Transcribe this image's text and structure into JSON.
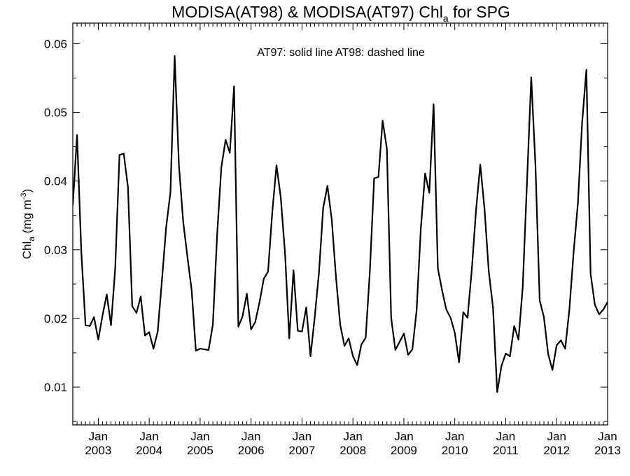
{
  "chart_data": {
    "type": "line",
    "title_parts": {
      "main": "MODISA(AT98) & MODISA(AT97)  Chl",
      "sub": "a",
      "tail": " for SPG"
    },
    "ylabel_parts": {
      "main": "Chl",
      "sub": "a",
      "units_open": " (mg m",
      "sup": "-3",
      "units_close": ")"
    },
    "annotation": "AT97: solid line   AT98: dashed line",
    "ylim": [
      0.0045,
      0.063
    ],
    "xlim": [
      2002.5,
      2013.0
    ],
    "y_ticks": [
      0.01,
      0.02,
      0.03,
      0.04,
      0.05,
      0.06
    ],
    "y_tick_labels": [
      "0.01",
      "0.02",
      "0.03",
      "0.04",
      "0.05",
      "0.06"
    ],
    "x_ticks": [
      {
        "x": 2003,
        "month": "Jan",
        "year": "2003"
      },
      {
        "x": 2004,
        "month": "Jan",
        "year": "2004"
      },
      {
        "x": 2005,
        "month": "Jan",
        "year": "2005"
      },
      {
        "x": 2006,
        "month": "Jan",
        "year": "2006"
      },
      {
        "x": 2007,
        "month": "Jan",
        "year": "2007"
      },
      {
        "x": 2008,
        "month": "Jan",
        "year": "2008"
      },
      {
        "x": 2009,
        "month": "Jan",
        "year": "2009"
      },
      {
        "x": 2010,
        "month": "Jan",
        "year": "2010"
      },
      {
        "x": 2011,
        "month": "Jan",
        "year": "2011"
      },
      {
        "x": 2012,
        "month": "Jan",
        "year": "2012"
      },
      {
        "x": 2013,
        "month": "Jan",
        "year": "2013"
      }
    ],
    "series": [
      {
        "name": "AT97",
        "style": "solid",
        "color": "#000000",
        "start_year": 2002,
        "start_month": 7,
        "values": [
          0.0365,
          0.0467,
          0.0298,
          0.019,
          0.0189,
          0.0202,
          0.0169,
          0.0204,
          0.0235,
          0.019,
          0.0273,
          0.0438,
          0.044,
          0.0391,
          0.0218,
          0.0208,
          0.0232,
          0.0175,
          0.018,
          0.0156,
          0.0181,
          0.0255,
          0.0333,
          0.0384,
          0.0582,
          0.0423,
          0.0341,
          0.029,
          0.0241,
          0.0153,
          0.0156,
          0.0155,
          0.0154,
          0.0191,
          0.0322,
          0.042,
          0.046,
          0.0441,
          0.0538,
          0.0188,
          0.0203,
          0.0236,
          0.0184,
          0.0195,
          0.0224,
          0.0258,
          0.0268,
          0.0355,
          0.0423,
          0.0376,
          0.0295,
          0.0171,
          0.027,
          0.0182,
          0.0181,
          0.0216,
          0.0145,
          0.0202,
          0.0267,
          0.0361,
          0.0393,
          0.0344,
          0.0261,
          0.0191,
          0.016,
          0.0171,
          0.0145,
          0.0132,
          0.0162,
          0.0172,
          0.0269,
          0.0404,
          0.0406,
          0.0488,
          0.0447,
          0.0201,
          0.0154,
          0.0166,
          0.0178,
          0.0147,
          0.0155,
          0.0211,
          0.0331,
          0.0411,
          0.0383,
          0.0512,
          0.0273,
          0.0241,
          0.0213,
          0.0201,
          0.0179,
          0.0136,
          0.0209,
          0.0201,
          0.0271,
          0.0357,
          0.0424,
          0.0359,
          0.0269,
          0.0216,
          0.0093,
          0.0131,
          0.0149,
          0.0145,
          0.0189,
          0.0169,
          0.0245,
          0.0397,
          0.0551,
          0.0424,
          0.0226,
          0.0202,
          0.0148,
          0.0125,
          0.0161,
          0.0168,
          0.0156,
          0.0213,
          0.0297,
          0.0368,
          0.0485,
          0.0562,
          0.0265,
          0.022,
          0.0206,
          0.0213,
          0.0224
        ]
      }
    ]
  }
}
